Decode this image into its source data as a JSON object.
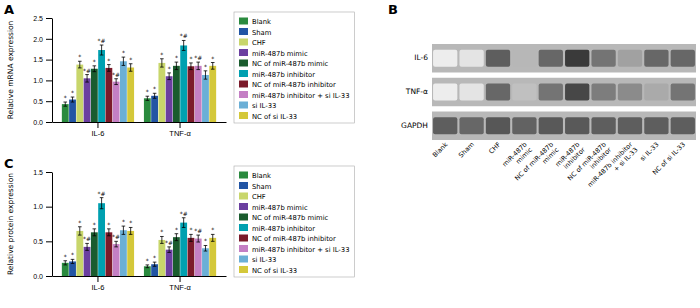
{
  "chart_data": [
    {
      "type": "bar",
      "title": "A",
      "ylabel": "Relative mRNA expression",
      "categories": [
        "IL-6",
        "TNF-α"
      ],
      "series": [
        {
          "name": "Blank",
          "color": "#2a8a3e",
          "values": [
            0.43,
            0.57
          ],
          "errors": [
            0.05,
            0.05
          ],
          "annotations": [
            "*",
            "*"
          ]
        },
        {
          "name": "Sham",
          "color": "#2255a4",
          "values": [
            0.54,
            0.63
          ],
          "errors": [
            0.06,
            0.06
          ],
          "annotations": [
            "*",
            "*"
          ]
        },
        {
          "name": "CHF",
          "color": "#c8d66b",
          "values": [
            1.38,
            1.42
          ],
          "errors": [
            0.08,
            0.1
          ],
          "annotations": [
            "*",
            "*"
          ]
        },
        {
          "name": "miR-487b mimic",
          "color": "#6b3fa0",
          "values": [
            1.05,
            1.1
          ],
          "errors": [
            0.09,
            0.08
          ],
          "annotations": [
            "*#",
            "*"
          ]
        },
        {
          "name": "NC of miR-487b mimic",
          "color": "#1a5c2e",
          "values": [
            1.28,
            1.35
          ],
          "errors": [
            0.07,
            0.09
          ],
          "annotations": [
            "*",
            "*"
          ]
        },
        {
          "name": "miR-487b inhibitor",
          "color": "#00a0b0",
          "values": [
            1.73,
            1.84
          ],
          "errors": [
            0.12,
            0.12
          ],
          "annotations": [
            "*#",
            "*#"
          ]
        },
        {
          "name": "NC of miR-487b inhibitor",
          "color": "#7b1a2a",
          "values": [
            1.3,
            1.34
          ],
          "errors": [
            0.08,
            0.08
          ],
          "annotations": [
            "*",
            "*"
          ]
        },
        {
          "name": "miR-487b inhibitor + si IL-33",
          "color": "#c47fc4",
          "values": [
            0.97,
            1.35
          ],
          "errors": [
            0.07,
            0.09
          ],
          "annotations": [
            "*#",
            "*#"
          ]
        },
        {
          "name": "si IL-33",
          "color": "#6bafd6",
          "values": [
            1.46,
            1.13
          ],
          "errors": [
            0.1,
            0.1
          ],
          "annotations": [
            "*",
            "*"
          ]
        },
        {
          "name": "NC of si IL-33",
          "color": "#d4c83a",
          "values": [
            1.31,
            1.35
          ],
          "errors": [
            0.09,
            0.08
          ],
          "annotations": [
            "*",
            "*"
          ]
        }
      ],
      "ylim": [
        0,
        2.5
      ],
      "yticks": [
        {
          "value": 0.0,
          "label": "0.0"
        },
        0.5,
        {
          "value": 1.0,
          "label": "1.0"
        },
        1.5,
        {
          "value": 2.0,
          "label": "2.0"
        },
        2.5
      ],
      "grid": false,
      "legend": "right"
    },
    {
      "type": "heatmap",
      "title": "B",
      "x": [
        "Blank",
        "Sham",
        "CHF",
        "miR-487b\nmimic",
        "NC of miR-487b\nmimic",
        "miR-487b\ninhibitor",
        "NC of miR-487b\ninhibitor",
        "miR-487b inhibitor\n+ si IL-33",
        "si IL-33",
        "NC of si IL-33"
      ],
      "y": [
        "IL-6",
        "TNF-α",
        "GAPDH"
      ],
      "cells": [
        [
          0.08,
          0.12,
          0.72,
          0.32,
          0.68,
          0.88,
          0.62,
          0.42,
          0.68,
          0.68
        ],
        [
          0.08,
          0.12,
          0.68,
          0.28,
          0.62,
          0.82,
          0.58,
          0.52,
          0.38,
          0.62
        ],
        [
          0.72,
          0.68,
          0.75,
          0.7,
          0.74,
          0.74,
          0.72,
          0.72,
          0.72,
          0.72
        ]
      ]
    },
    {
      "type": "bar",
      "title": "C",
      "ylabel": "Relative protein expression",
      "categories": [
        "IL-6",
        "TNF-α"
      ],
      "series": [
        {
          "name": "Blank",
          "color": "#2a8a3e",
          "values": [
            0.19,
            0.14
          ],
          "errors": [
            0.03,
            0.02
          ],
          "annotations": [
            "*",
            "*"
          ]
        },
        {
          "name": "Sham",
          "color": "#2255a4",
          "values": [
            0.21,
            0.17
          ],
          "errors": [
            0.03,
            0.03
          ],
          "annotations": [
            "*",
            "*"
          ]
        },
        {
          "name": "CHF",
          "color": "#c8d66b",
          "values": [
            0.65,
            0.52
          ],
          "errors": [
            0.06,
            0.05
          ],
          "annotations": [
            "*",
            "*"
          ]
        },
        {
          "name": "miR-487b mimic",
          "color": "#6b3fa0",
          "values": [
            0.42,
            0.38
          ],
          "errors": [
            0.05,
            0.04
          ],
          "annotations": [
            "*#",
            "*#"
          ]
        },
        {
          "name": "NC of miR-487b mimic",
          "color": "#1a5c2e",
          "values": [
            0.63,
            0.56
          ],
          "errors": [
            0.05,
            0.05
          ],
          "annotations": [
            "*",
            "*"
          ]
        },
        {
          "name": "miR-487b inhibitor",
          "color": "#00a0b0",
          "values": [
            1.05,
            0.77
          ],
          "errors": [
            0.08,
            0.07
          ],
          "annotations": [
            "*#",
            "*#"
          ]
        },
        {
          "name": "NC of miR-487b inhibitor",
          "color": "#7b1a2a",
          "values": [
            0.63,
            0.55
          ],
          "errors": [
            0.05,
            0.05
          ],
          "annotations": [
            "*",
            "*"
          ]
        },
        {
          "name": "miR-487b inhibitor + si IL-33",
          "color": "#c47fc4",
          "values": [
            0.46,
            0.54
          ],
          "errors": [
            0.04,
            0.05
          ],
          "annotations": [
            "*#",
            "*#"
          ]
        },
        {
          "name": "si IL-33",
          "color": "#6bafd6",
          "values": [
            0.66,
            0.4
          ],
          "errors": [
            0.06,
            0.04
          ],
          "annotations": [
            "*",
            "*"
          ]
        },
        {
          "name": "NC of si IL-33",
          "color": "#d4c83a",
          "values": [
            0.65,
            0.55
          ],
          "errors": [
            0.05,
            0.05
          ],
          "annotations": [
            "*",
            "*"
          ]
        }
      ],
      "ylim": [
        0,
        1.5
      ],
      "yticks": [
        {
          "value": 0.0,
          "label": "0.0"
        },
        0.5,
        {
          "value": 1.0,
          "label": "1.0"
        },
        1.5
      ],
      "grid": false,
      "legend": "right"
    }
  ]
}
